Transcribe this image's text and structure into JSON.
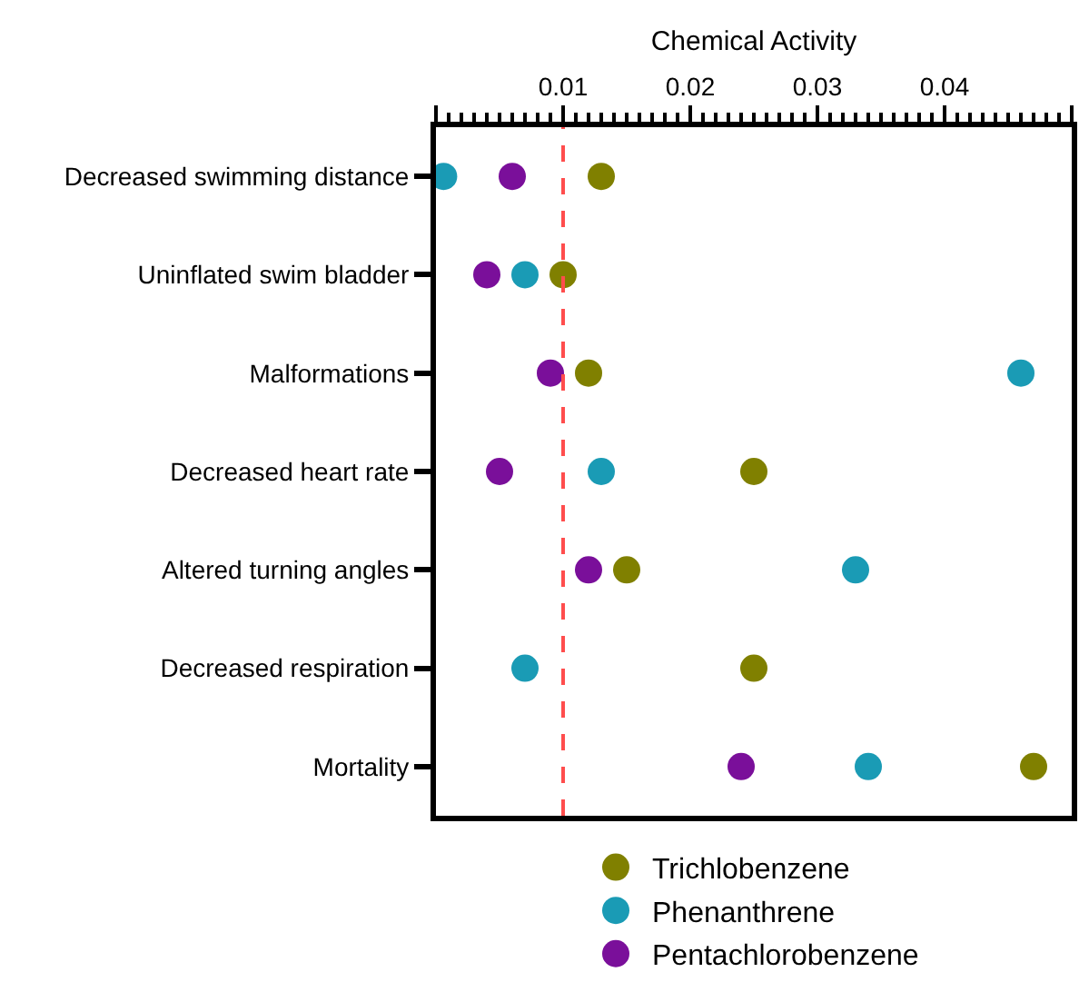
{
  "chart_data": {
    "type": "scatter",
    "xlabel": "Chemical Activity",
    "categories": [
      "Decreased swimming distance",
      "Uninflated swim bladder",
      "Malformations",
      "Decreased heart rate",
      "Altered turning angles",
      "Decreased respiration",
      "Mortality"
    ],
    "orientation": "horizontal",
    "series": [
      {
        "name": "Trichlobenzene",
        "color": "#808000",
        "values": [
          0.013,
          0.01,
          0.012,
          0.025,
          0.015,
          0.025,
          0.047
        ]
      },
      {
        "name": "Phenanthrene",
        "color": "#1a9bb5",
        "values": [
          0.0006,
          0.007,
          0.046,
          0.013,
          0.033,
          0.007,
          0.034
        ]
      },
      {
        "name": "Pentachlorobenzene",
        "color": "#7a0f9a",
        "values": [
          0.006,
          0.004,
          0.009,
          0.005,
          0.012,
          null,
          0.024
        ]
      }
    ],
    "xlim": [
      0,
      0.05
    ],
    "xticks": [
      {
        "value": 0,
        "label": null
      },
      0.01,
      0.02,
      0.03,
      0.04,
      {
        "value": 0.05,
        "label": null
      }
    ],
    "ref_lines": [
      {
        "axis": "x",
        "value": 0.01,
        "color": "#ff4d4d",
        "line_style": "dashed"
      }
    ],
    "marker": "circle",
    "grid": false,
    "legend": "bottom"
  }
}
